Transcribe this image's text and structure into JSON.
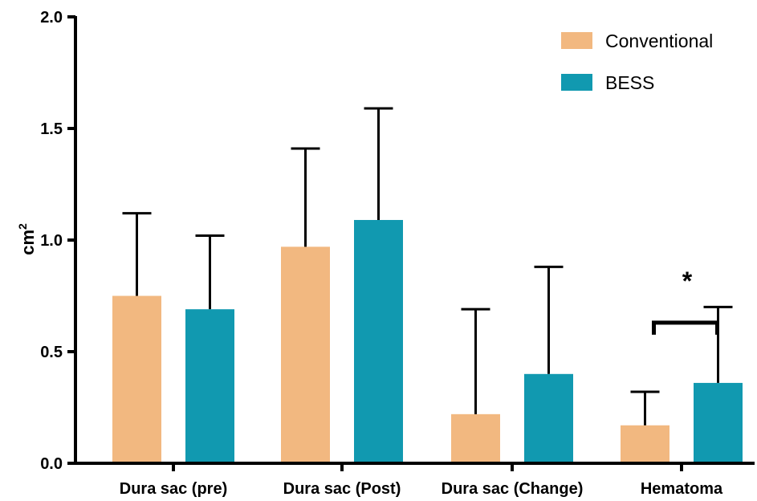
{
  "chart_data": {
    "type": "bar",
    "ylabel": "cm",
    "ylabel_superscript": "2",
    "ylim": [
      0,
      2.0
    ],
    "yticks": [
      "0.0",
      "0.5",
      "1.0",
      "1.5",
      "2.0"
    ],
    "categories": [
      "Dura sac (pre)",
      "Dura sac (Post)",
      "Dura sac (Change)",
      "Hematoma"
    ],
    "series": [
      {
        "name": "Conventional",
        "color": "#F2B880",
        "values": [
          0.75,
          0.97,
          0.22,
          0.17
        ],
        "error": [
          0.37,
          0.44,
          0.47,
          0.15
        ]
      },
      {
        "name": "BESS",
        "color": "#1199B0",
        "values": [
          0.69,
          1.09,
          0.4,
          0.36
        ],
        "error": [
          0.33,
          0.5,
          0.48,
          0.34
        ]
      }
    ],
    "legend_position": "top-right",
    "significance": {
      "category": "Hematoma",
      "label": "*",
      "bracket_y": 0.63
    }
  }
}
